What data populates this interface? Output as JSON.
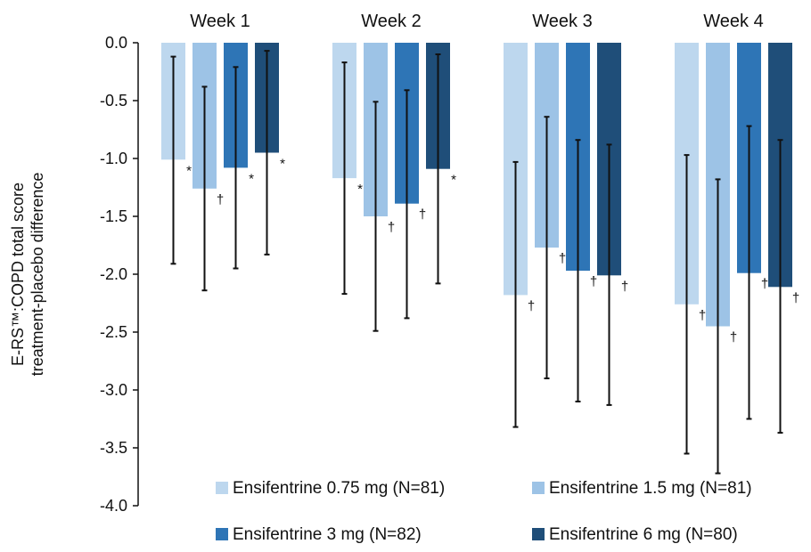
{
  "chart_data": {
    "type": "bar",
    "categories": [
      "Week 1",
      "Week 2",
      "Week 3",
      "Week 4"
    ],
    "ylabel_lines": [
      "E-RS™:COPD total score",
      "treatment-placebo difference"
    ],
    "ylim": [
      -4.0,
      0.0
    ],
    "yticks": [
      "0.0",
      "-0.5",
      "-1.0",
      "-1.5",
      "-2.0",
      "-2.5",
      "-3.0",
      "-3.5",
      "-4.0"
    ],
    "grid": false,
    "legend_position": "bottom",
    "series": [
      {
        "name": "Ensifentrine 0.75 mg (N=81)",
        "color": "#bdd7ee",
        "values": [
          -1.01,
          -1.17,
          -2.18,
          -2.26
        ],
        "ci_upper": [
          -0.12,
          -0.17,
          -1.03,
          -0.97
        ],
        "ci_lower": [
          -1.91,
          -2.17,
          -3.32,
          -3.55
        ],
        "markers": [
          "*",
          "*",
          "†",
          "†"
        ]
      },
      {
        "name": "Ensifentrine 1.5 mg (N=81)",
        "color": "#9dc3e6",
        "values": [
          -1.26,
          -1.5,
          -1.77,
          -2.45
        ],
        "ci_upper": [
          -0.38,
          -0.51,
          -0.64,
          -1.18
        ],
        "ci_lower": [
          -2.14,
          -2.49,
          -2.9,
          -3.72
        ],
        "markers": [
          "†",
          "†",
          "†",
          "†"
        ]
      },
      {
        "name": "Ensifentrine 3 mg (N=82)",
        "color": "#2e75b6",
        "values": [
          -1.08,
          -1.39,
          -1.97,
          -1.99
        ],
        "ci_upper": [
          -0.21,
          -0.41,
          -0.84,
          -0.72
        ],
        "ci_lower": [
          -1.95,
          -2.38,
          -3.1,
          -3.25
        ],
        "markers": [
          "*",
          "†",
          "†",
          "†"
        ]
      },
      {
        "name": "Ensifentrine 6 mg (N=80)",
        "color": "#1f4e79",
        "values": [
          -0.95,
          -1.09,
          -2.01,
          -2.11
        ],
        "ci_upper": [
          -0.07,
          -0.1,
          -0.88,
          -0.84
        ],
        "ci_lower": [
          -1.83,
          -2.08,
          -3.13,
          -3.37
        ],
        "markers": [
          "*",
          "*",
          "†",
          "†"
        ]
      }
    ]
  }
}
